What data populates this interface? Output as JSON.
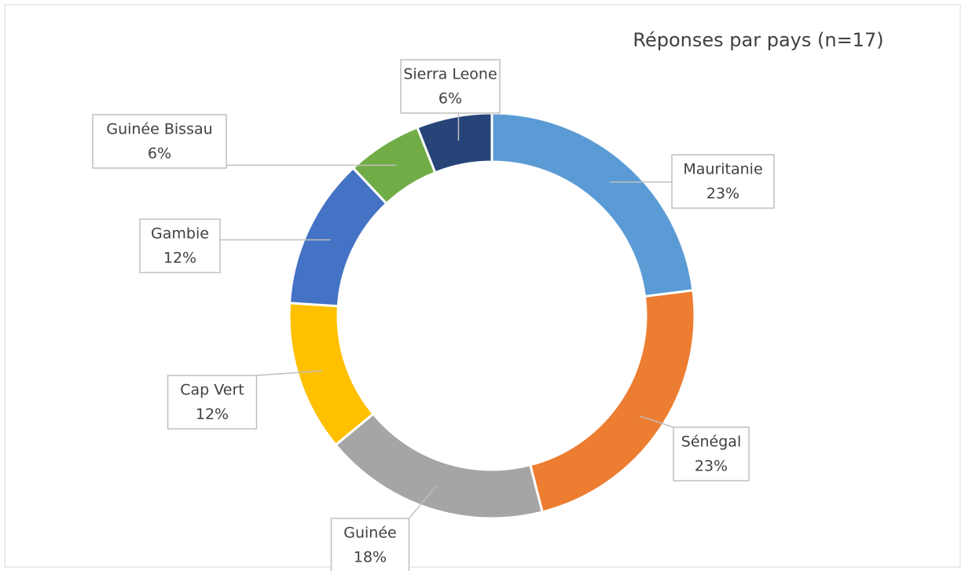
{
  "chart_data": {
    "type": "donut",
    "title": "Réponses par pays (n=17)",
    "categories": [
      "Mauritanie",
      "Sénégal",
      "Guinée",
      "Cap Vert",
      "Gambie",
      "Guinée Bissau",
      "Sierra Leone"
    ],
    "values": [
      23,
      23,
      18,
      12,
      12,
      6,
      6
    ],
    "value_labels": [
      "23%",
      "23%",
      "18%",
      "12%",
      "12%",
      "6%",
      "6%"
    ],
    "colors": [
      "#5b9bd5",
      "#ed7d31",
      "#a5a5a5",
      "#ffc000",
      "#4472c4",
      "#70ad47",
      "#264478"
    ]
  }
}
